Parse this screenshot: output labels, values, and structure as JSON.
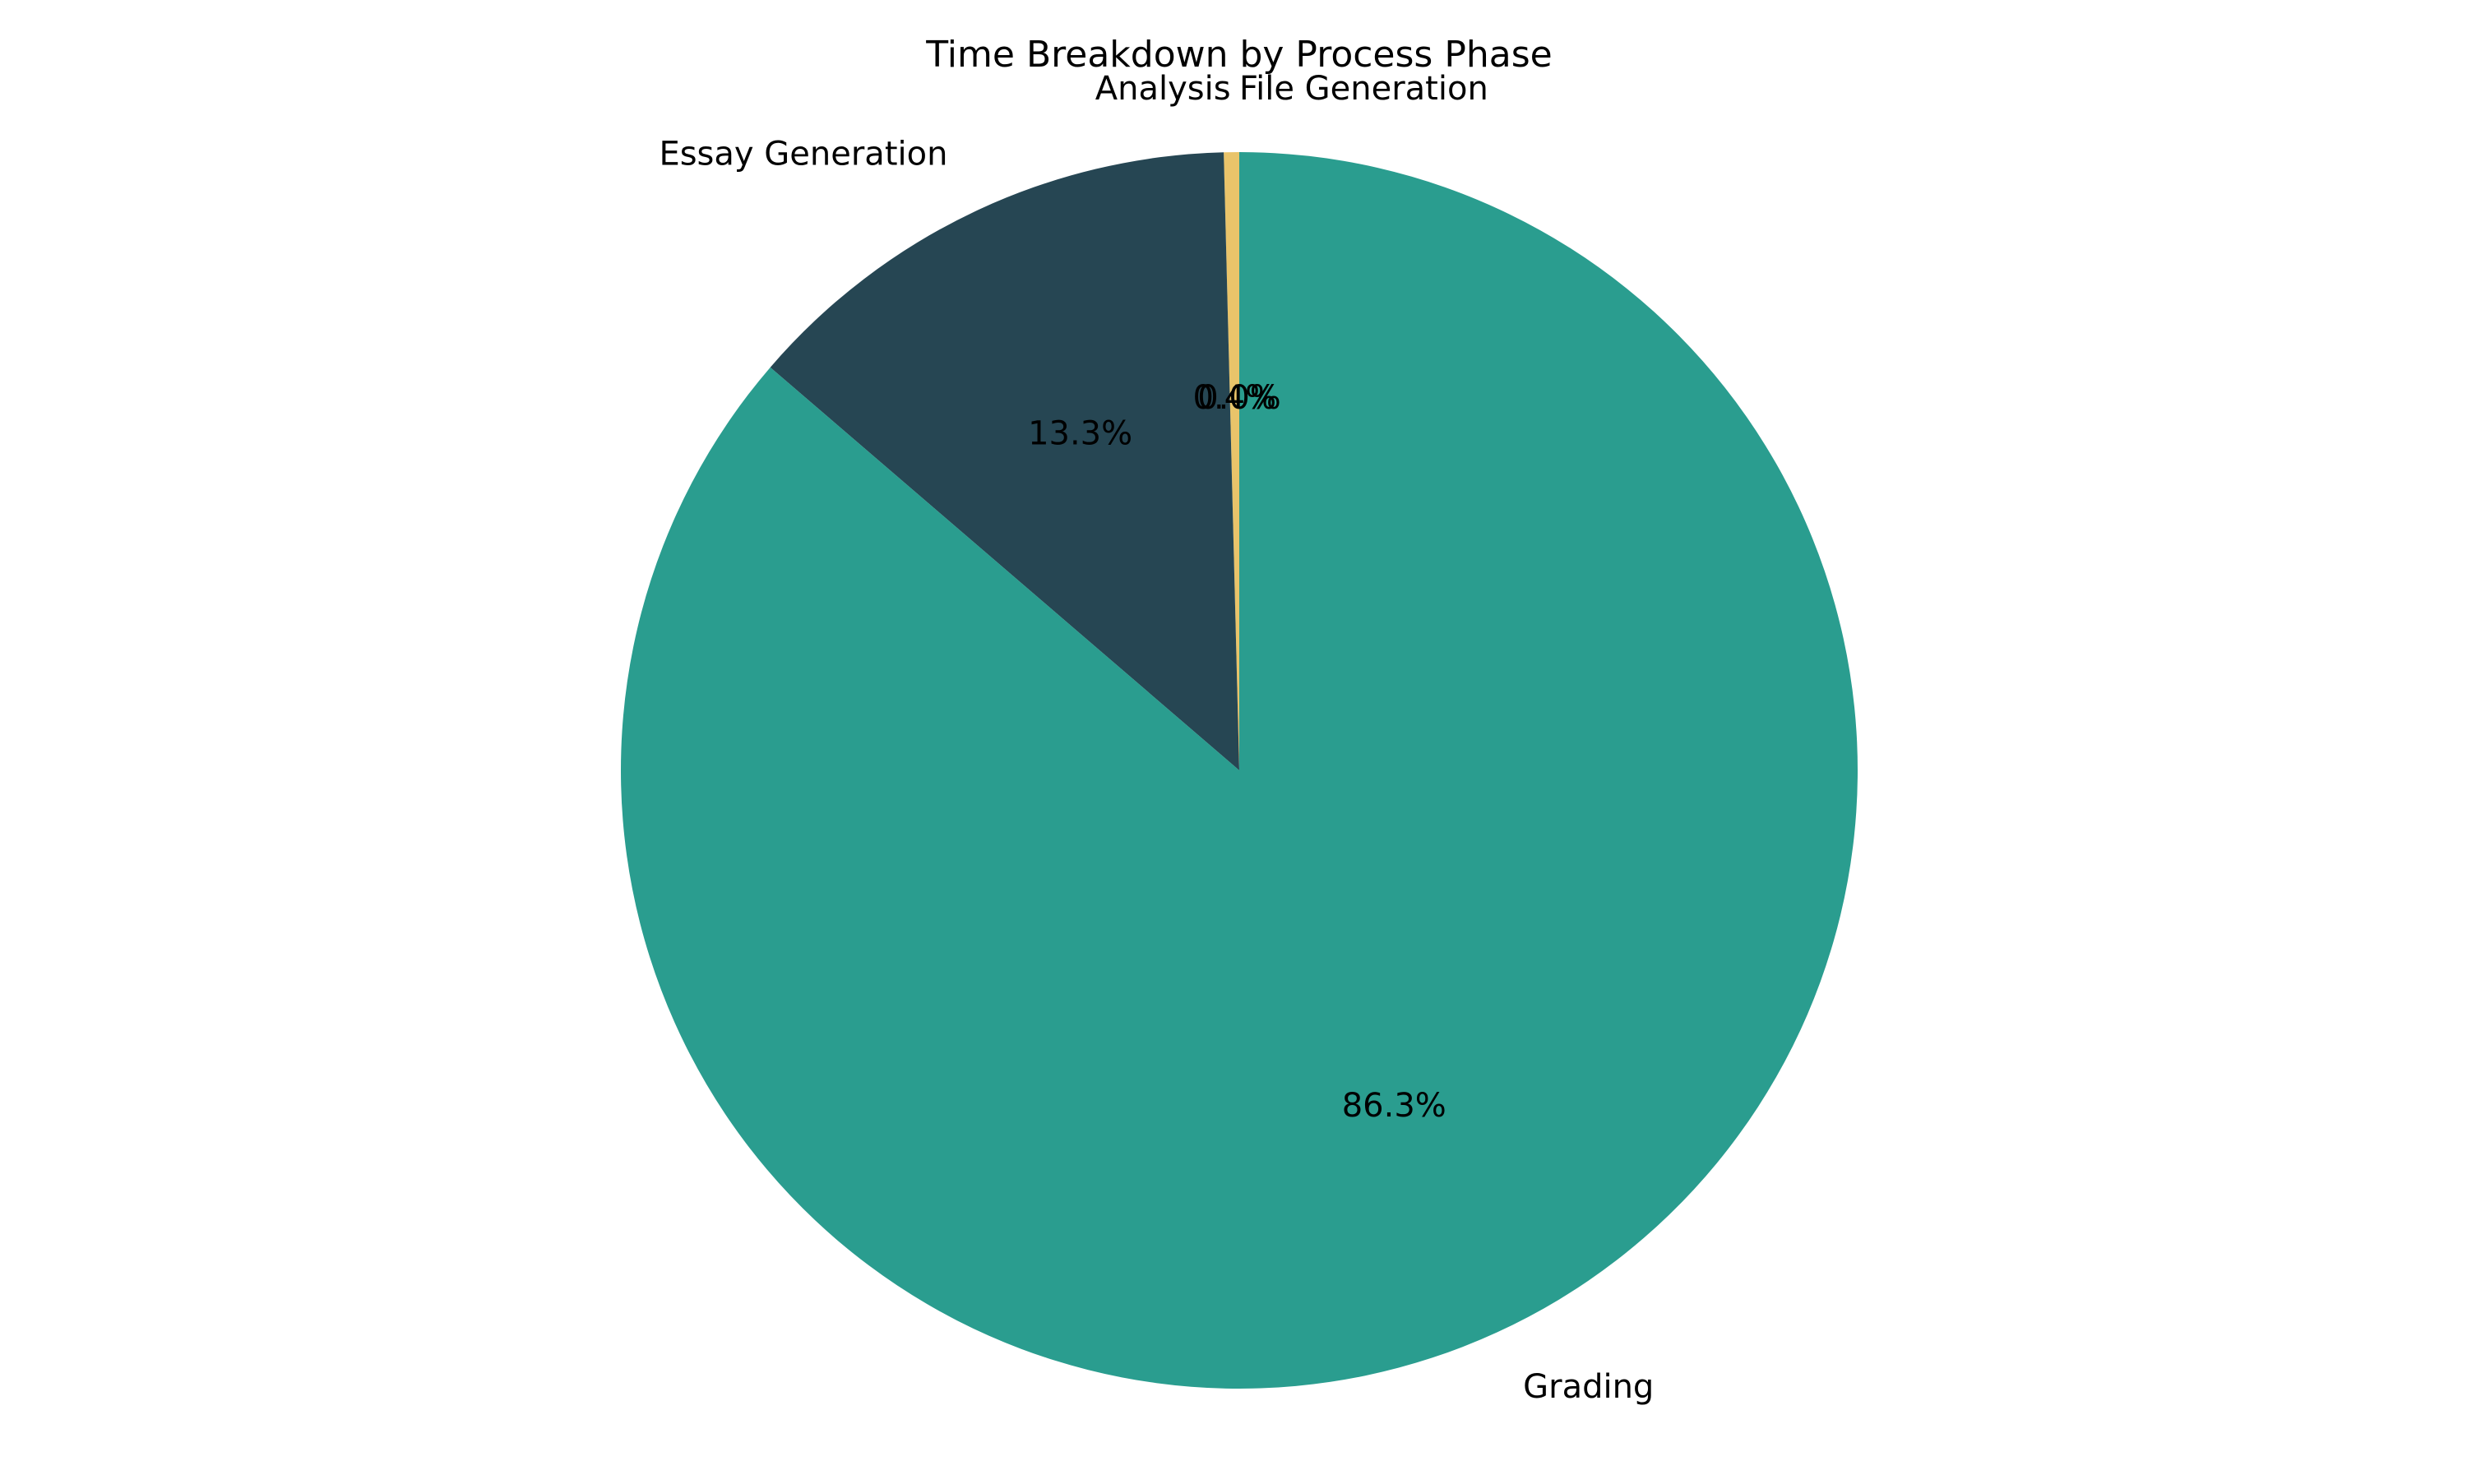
{
  "chart_data": {
    "type": "pie",
    "title": "Time Breakdown by Process Phase",
    "start_angle": 90,
    "direction": "counterclockwise",
    "slices": [
      {
        "label": "File Generation",
        "value": 0.0,
        "pct_label": "0.0%",
        "color": "#e9c46a"
      },
      {
        "label": "Analysis",
        "value": 0.4,
        "pct_label": "0.4%",
        "color": "#e9c46a"
      },
      {
        "label": "Essay Generation",
        "value": 13.3,
        "pct_label": "13.3%",
        "color": "#264653"
      },
      {
        "label": "Grading",
        "value": 86.3,
        "pct_label": "86.3%",
        "color": "#2a9d8f"
      }
    ]
  }
}
